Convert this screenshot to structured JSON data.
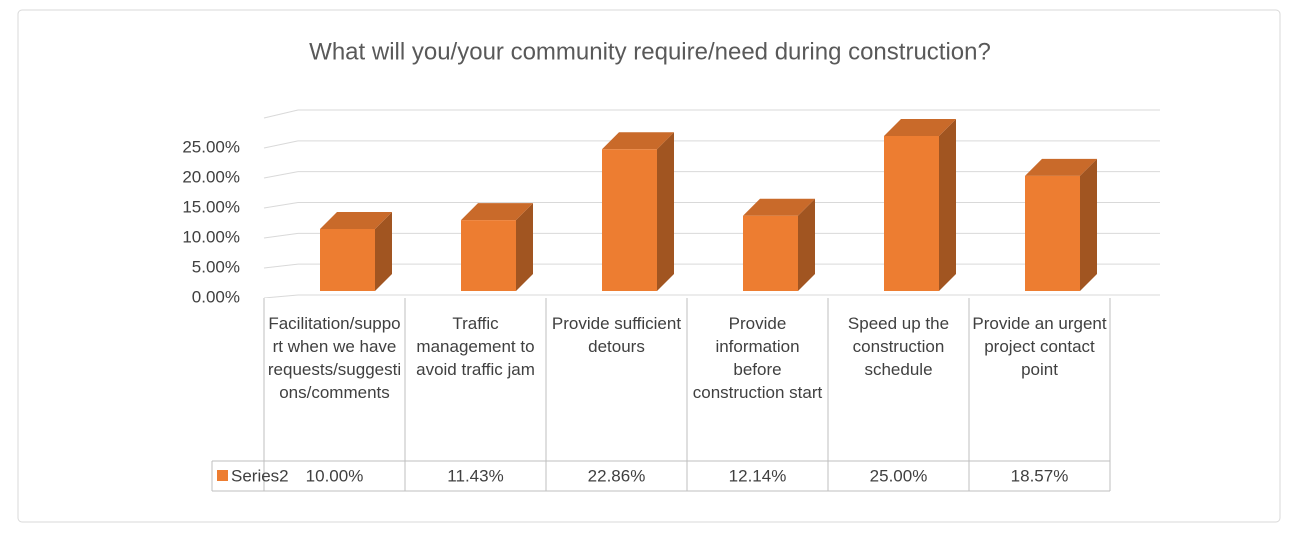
{
  "chart_data": {
    "type": "bar3d",
    "title": "What will you/your community require/need during construction?",
    "categories": [
      "Facilitation/support when we have requests/suggestions/comments",
      "Traffic management to avoid traffic jam",
      "Provide sufficient detours",
      "Provide information before construction start",
      "Speed up the construction schedule",
      "Provide an urgent project contact point"
    ],
    "series": [
      {
        "name": "Series2",
        "color": "#ed7d31",
        "values": [
          10,
          11.43,
          22.86,
          12.14,
          25,
          18.57
        ],
        "value_labels": [
          "10.00%",
          "11.43%",
          "22.86%",
          "12.14%",
          "25.00%",
          "18.57%"
        ]
      }
    ],
    "ylim": [
      0,
      30
    ],
    "yticks": [
      {
        "value": 0,
        "label": "0.00%"
      },
      {
        "value": 5,
        "label": "5.00%"
      },
      {
        "value": 10,
        "label": "10.00%"
      },
      {
        "value": 15,
        "label": "15.00%"
      },
      {
        "value": 20,
        "label": "20.00%"
      },
      {
        "value": 25,
        "label": "25.00%"
      }
    ],
    "grid": true,
    "data_table": true
  }
}
